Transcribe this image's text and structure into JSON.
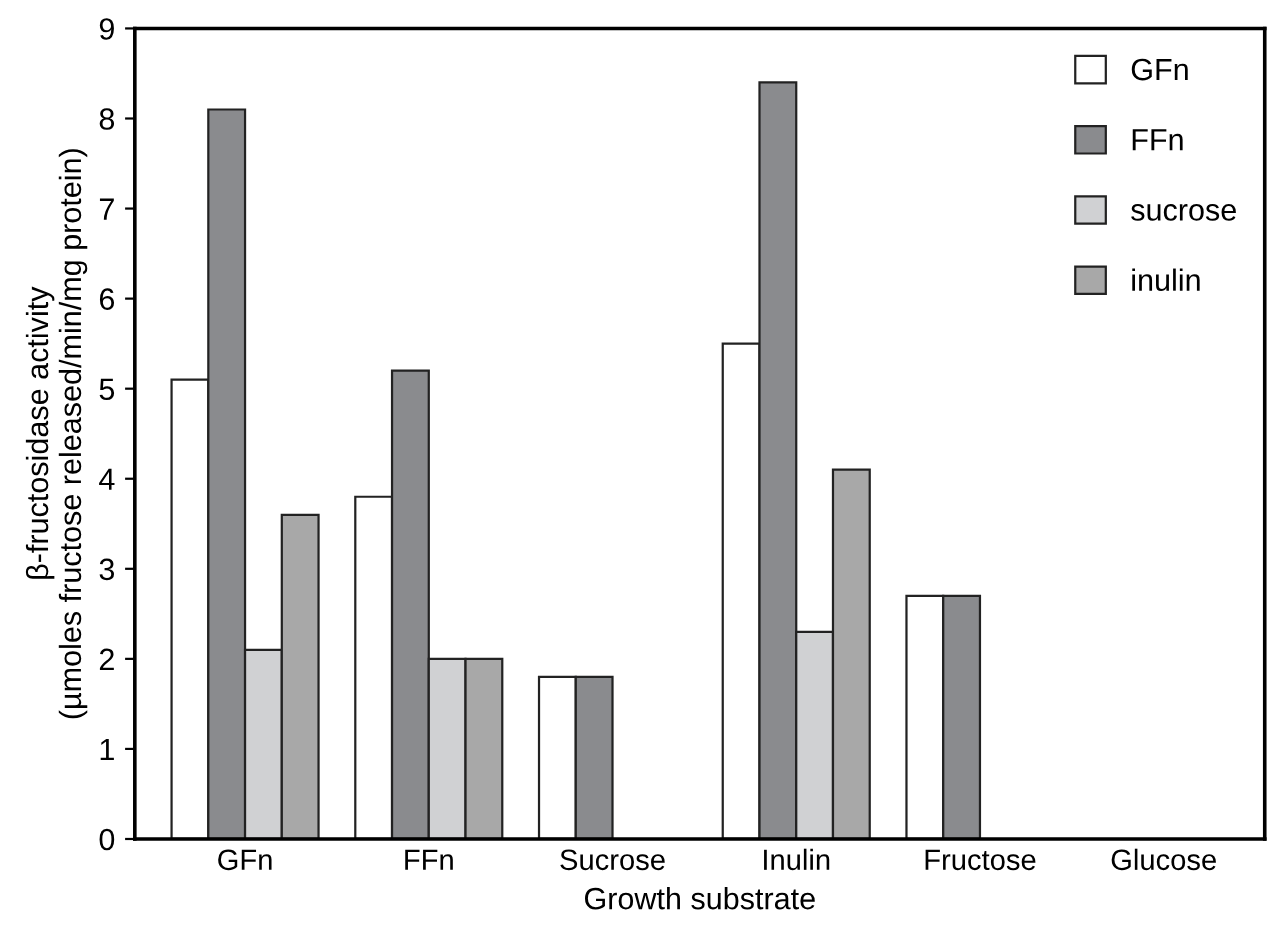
{
  "chart_data": {
    "type": "bar",
    "xlabel": "Growth substrate",
    "ylabel": "β-fructosidase activity\n(µmoles fructose released/min/mg protein)",
    "categories": [
      "GFn",
      "FFn",
      "Sucrose",
      "Inulin",
      "Fructose",
      "Glucose"
    ],
    "series": [
      {
        "name": "GFn",
        "color": "#ffffff",
        "values": [
          5.1,
          3.8,
          1.8,
          5.5,
          2.7,
          null
        ]
      },
      {
        "name": "FFn",
        "color": "#8a8b8e",
        "values": [
          8.1,
          5.2,
          1.8,
          8.4,
          2.7,
          null
        ]
      },
      {
        "name": "sucrose",
        "color": "#d0d1d3",
        "values": [
          2.1,
          2.0,
          null,
          2.3,
          null,
          null
        ]
      },
      {
        "name": "inulin",
        "color": "#a8a8a8",
        "values": [
          3.6,
          2.0,
          null,
          4.1,
          null,
          null
        ]
      }
    ],
    "ylim": [
      0,
      9
    ],
    "yticks": [
      0,
      1,
      2,
      3,
      4,
      5,
      6,
      7,
      8,
      9
    ],
    "grid": false,
    "legend": "top right"
  }
}
